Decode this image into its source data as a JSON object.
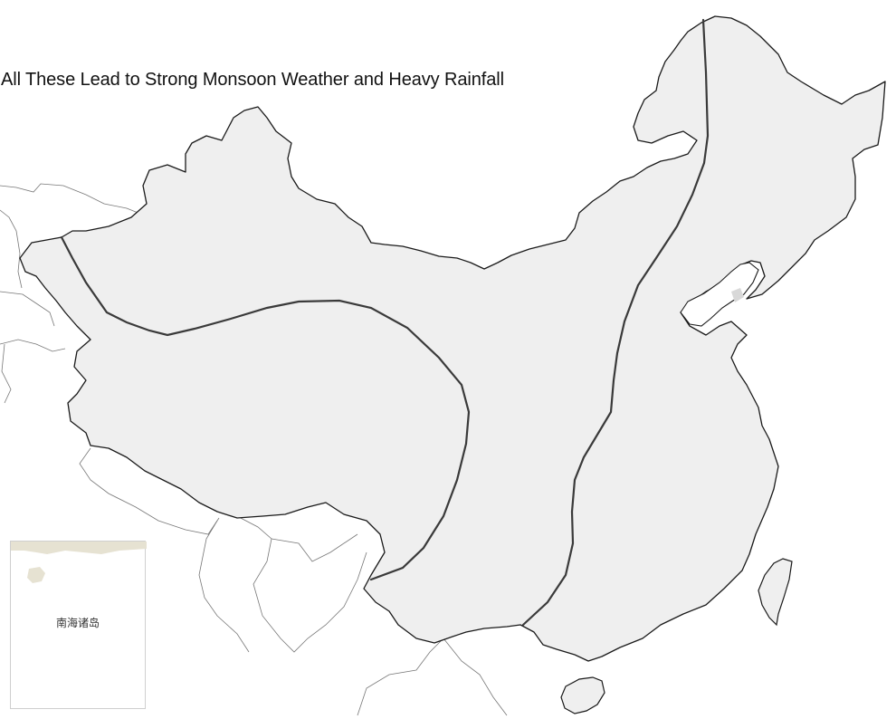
{
  "map": {
    "title": "All These Lead to Strong Monsoon Weather and Heavy Rainfall",
    "inset_label": "南海诸岛",
    "colors": {
      "land_fill": "#efefef",
      "border": "#1a1a1a",
      "neighbor_border": "#777777",
      "division_line": "#3a3a3a",
      "inset_island": "#e6e2d2"
    },
    "features": [
      "china-landmass",
      "taiwan",
      "hainan",
      "liaodong-peninsula",
      "division-line-west",
      "division-line-central",
      "division-line-east",
      "south-china-sea-inset"
    ]
  }
}
